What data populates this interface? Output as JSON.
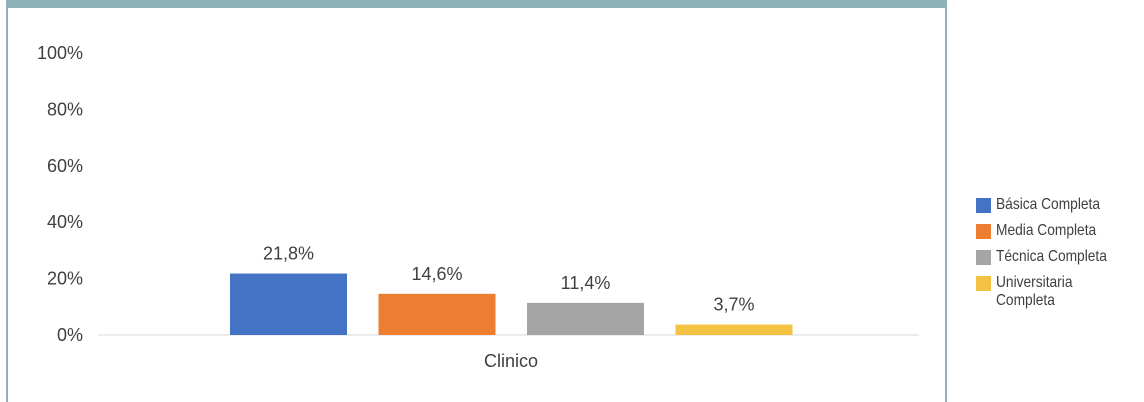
{
  "chart_data": {
    "type": "bar",
    "categories": [
      "Clinico"
    ],
    "series": [
      {
        "name": "Básica Completa",
        "values": [
          21.8
        ],
        "label": "21,8%",
        "color": "#4472c4"
      },
      {
        "name": "Media Completa",
        "values": [
          14.6
        ],
        "label": "14,6%",
        "color": "#ed7d31"
      },
      {
        "name": "Técnica Completa",
        "values": [
          11.4
        ],
        "label": "11,4%",
        "color": "#a5a5a5"
      },
      {
        "name": "Universitaria Completa",
        "values": [
          3.7
        ],
        "label": "3,7%",
        "color": "#f4c242"
      }
    ],
    "yticks": [
      "0%",
      "20%",
      "40%",
      "60%",
      "80%",
      "100%"
    ],
    "ylim": [
      0,
      100
    ],
    "grid": false,
    "legend_position": "right",
    "title": "",
    "xlabel": "",
    "ylabel": ""
  },
  "colors": {
    "frame": "#8fb3b8",
    "axis": "#d9d9d9",
    "text": "#404040"
  }
}
